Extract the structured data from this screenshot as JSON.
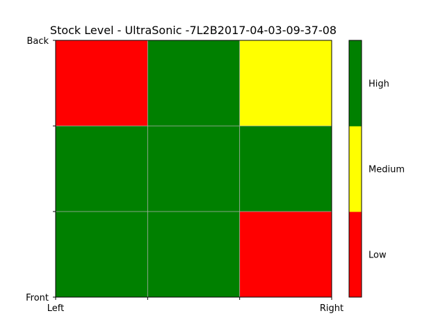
{
  "chart_data": {
    "type": "heatmap",
    "title": "Stock Level - UltraSonic -7L2B2017-04-03-09-37-08",
    "x_tick_labels": [
      "Left",
      "",
      "",
      "Right"
    ],
    "y_tick_labels": [
      "Front",
      "",
      "",
      "Back"
    ],
    "grid": true,
    "levels": [
      "Low",
      "Medium",
      "High"
    ],
    "level_colors": [
      "#ff0000",
      "#ffff00",
      "#008000"
    ],
    "rows_back_to_front": [
      [
        "Low",
        "High",
        "Medium"
      ],
      [
        "High",
        "High",
        "High"
      ],
      [
        "High",
        "High",
        "Low"
      ]
    ],
    "colorbar": {
      "labels": [
        "Low",
        "Medium",
        "High"
      ],
      "placement": "right"
    }
  }
}
